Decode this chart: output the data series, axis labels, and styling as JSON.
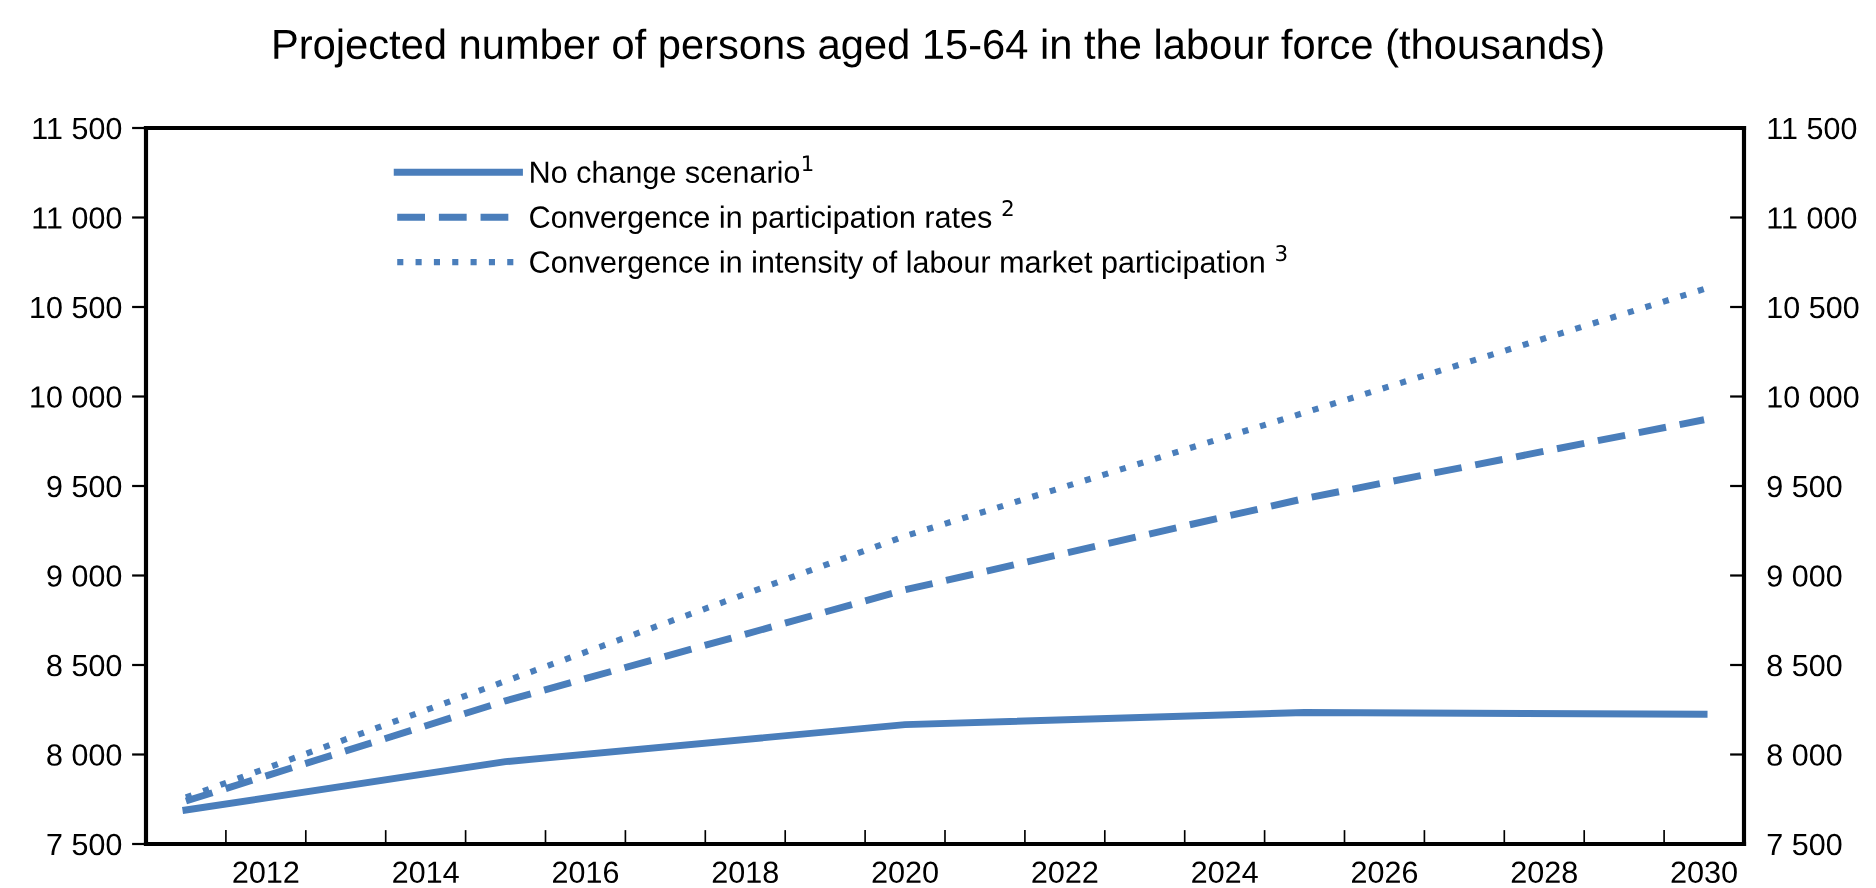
{
  "chart_data": {
    "type": "line",
    "title": "Projected number of persons aged 15-64 in the labour force (thousands)",
    "x": [
      2011,
      2015,
      2020,
      2025,
      2030
    ],
    "series": [
      {
        "name": "No change scenario$^{1}$",
        "color": "#4a7ebb",
        "line_style": "solid",
        "values": [
          7690,
          7960,
          8167,
          8235,
          8225
        ]
      },
      {
        "name": "Convergence in participation rates $^{2}$",
        "color": "#4a7ebb",
        "line_style": "dashed",
        "values": [
          7740,
          8300,
          8920,
          9430,
          9870
        ]
      },
      {
        "name": "Convergence in intensity of labour market participation $^{3}$",
        "color": "#4a7ebb",
        "line_style": "dotted",
        "values": [
          7760,
          8410,
          9220,
          9910,
          10600
        ]
      }
    ],
    "xlim": [
      2010.5,
      2030.5
    ],
    "xticks": [
      {
        "value": 2011.5,
        "label": null
      },
      2012,
      {
        "value": 2012.5,
        "label": null
      },
      {
        "value": 2013.5,
        "label": null
      },
      2014,
      {
        "value": 2014.5,
        "label": null
      },
      {
        "value": 2015.5,
        "label": null
      },
      2016,
      {
        "value": 2016.5,
        "label": null
      },
      {
        "value": 2017.5,
        "label": null
      },
      2018,
      {
        "value": 2018.5,
        "label": null
      },
      {
        "value": 2019.5,
        "label": null
      },
      2020,
      {
        "value": 2020.5,
        "label": null
      },
      {
        "value": 2021.5,
        "label": null
      },
      2022,
      {
        "value": 2022.5,
        "label": null
      },
      {
        "value": 2023.5,
        "label": null
      },
      2024,
      {
        "value": 2024.5,
        "label": null
      },
      {
        "value": 2025.5,
        "label": null
      },
      2026,
      {
        "value": 2026.5,
        "label": null
      },
      {
        "value": 2027.5,
        "label": null
      },
      2028,
      {
        "value": 2028.5,
        "label": null
      },
      {
        "value": 2029.5,
        "label": null
      },
      2030
    ],
    "ylim": [
      7500,
      11500
    ],
    "yticks": [
      {
        "value": 7500,
        "label": "7 500"
      },
      {
        "value": 8000,
        "label": "8 000"
      },
      {
        "value": 8500,
        "label": "8 500"
      },
      {
        "value": 9000,
        "label": "9 000"
      },
      {
        "value": 9500,
        "label": "9 500"
      },
      {
        "value": 10000,
        "label": "10 000"
      },
      {
        "value": 10500,
        "label": "10 500"
      },
      {
        "value": 11000,
        "label": "11 000"
      },
      {
        "value": 11500,
        "label": "11 500"
      }
    ],
    "y2lim": [
      7500,
      11500
    ],
    "y2ticks": [
      {
        "value": 7500,
        "label": "7 500"
      },
      {
        "value": 8000,
        "label": "8 000"
      },
      {
        "value": 8500,
        "label": "8 500"
      },
      {
        "value": 9000,
        "label": "9 000"
      },
      {
        "value": 9500,
        "label": "9 500"
      },
      {
        "value": 10000,
        "label": "10 000"
      },
      {
        "value": 10500,
        "label": "10 500"
      },
      {
        "value": 11000,
        "label": "11 000"
      },
      {
        "value": 11500,
        "label": "11 500"
      }
    ],
    "grid": false,
    "legend": "top left",
    "marker": "none"
  }
}
